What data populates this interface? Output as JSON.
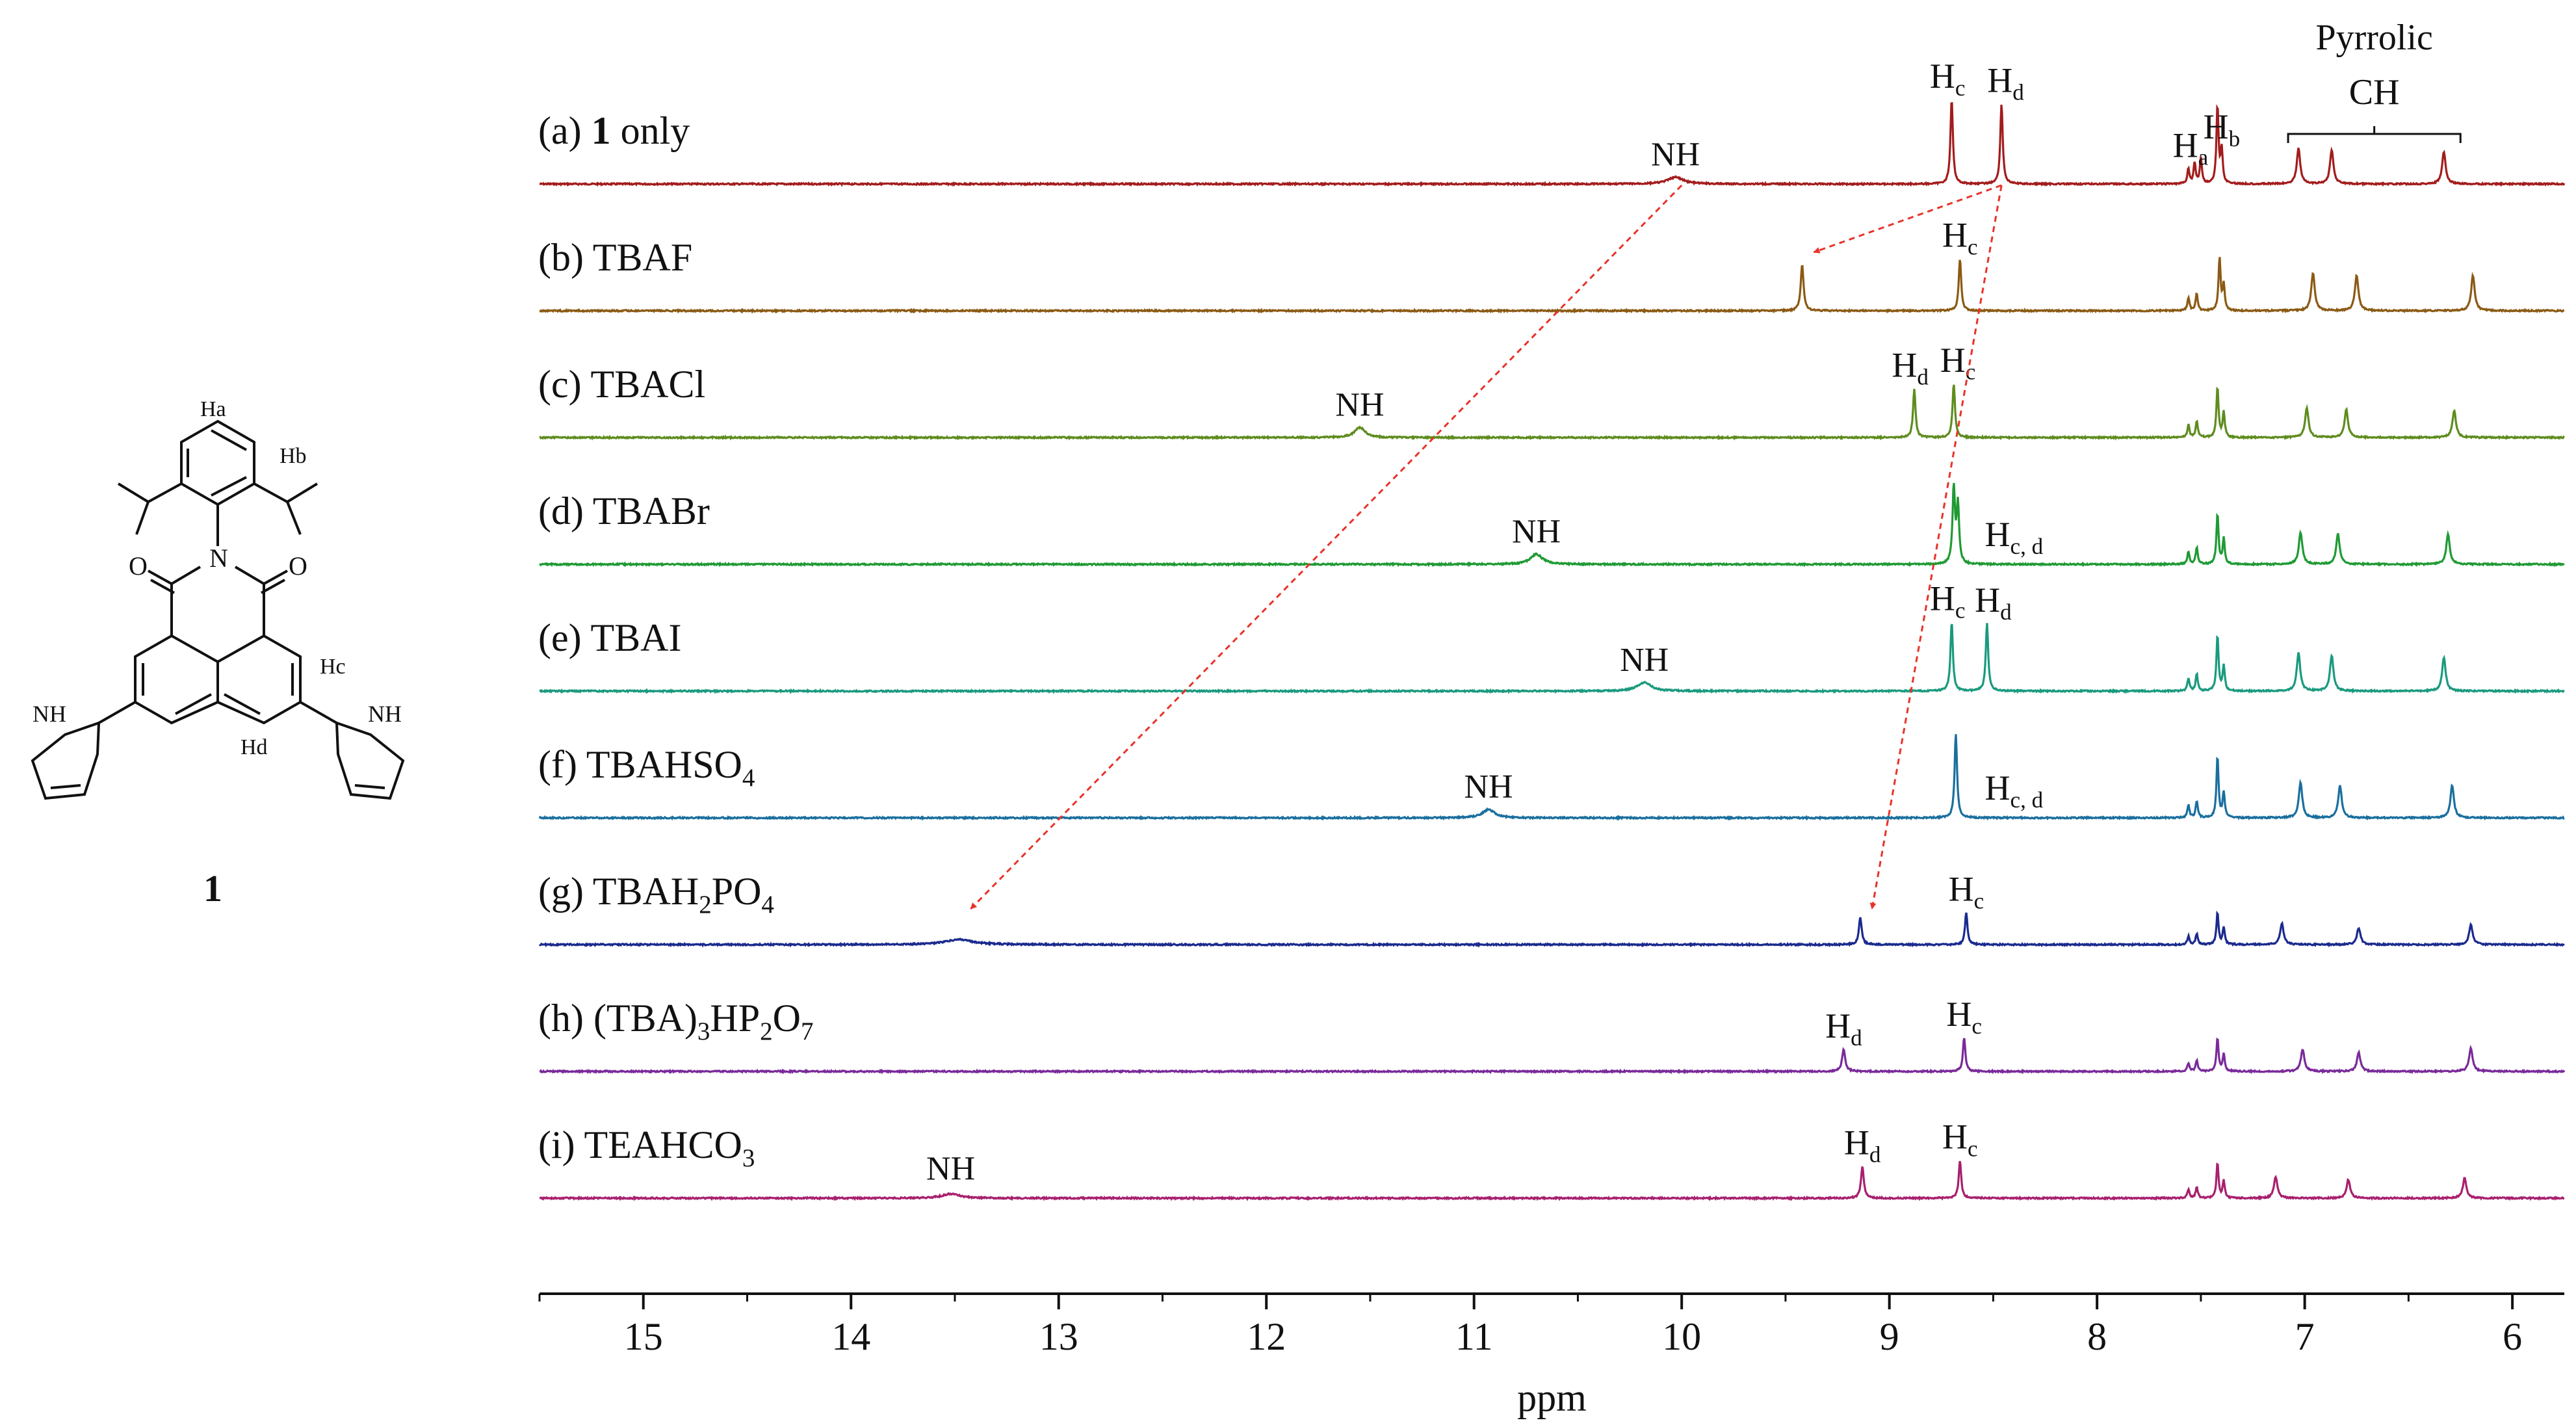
{
  "chart_data": {
    "type": "line",
    "title": "",
    "xlabel": "ppm",
    "ylabel": "",
    "xlim": [
      15.5,
      5.75
    ],
    "x_direction": "reversed",
    "x_ticks": [
      15,
      14,
      13,
      12,
      11,
      10,
      9,
      8,
      7,
      6
    ],
    "grid": false,
    "series": [
      {
        "id": "a",
        "label": "(a) 1 only",
        "label_parts": [
          "(a) ",
          "1",
          " only"
        ],
        "color": "#a31c1c",
        "peaks": [
          {
            "x": 10.03,
            "h": 0.08,
            "w": 0.045
          },
          {
            "x": 8.7,
            "h": 1.0,
            "w": 0.007
          },
          {
            "x": 8.46,
            "h": 0.95,
            "w": 0.007
          },
          {
            "x": 7.56,
            "h": 0.18,
            "w": 0.006
          },
          {
            "x": 7.53,
            "h": 0.25,
            "w": 0.006
          },
          {
            "x": 7.5,
            "h": 0.3,
            "w": 0.006
          },
          {
            "x": 7.42,
            "h": 0.92,
            "w": 0.006
          },
          {
            "x": 7.4,
            "h": 0.4,
            "w": 0.006
          },
          {
            "x": 7.03,
            "h": 0.42,
            "w": 0.01
          },
          {
            "x": 6.87,
            "h": 0.4,
            "w": 0.01
          },
          {
            "x": 6.33,
            "h": 0.38,
            "w": 0.01
          }
        ],
        "annotations": [
          {
            "x": 10.03,
            "text": "NH"
          },
          {
            "x": 8.72,
            "text": "Hc"
          },
          {
            "x": 8.44,
            "text": "Hd"
          },
          {
            "x": 7.55,
            "text": "Ha"
          },
          {
            "x": 7.4,
            "text": "Hb"
          }
        ]
      },
      {
        "id": "b",
        "label": "(b) TBAF",
        "color": "#8b5a14",
        "peaks": [
          {
            "x": 9.42,
            "h": 0.55,
            "w": 0.008
          },
          {
            "x": 8.66,
            "h": 0.62,
            "w": 0.007
          },
          {
            "x": 7.56,
            "h": 0.15,
            "w": 0.006
          },
          {
            "x": 7.52,
            "h": 0.2,
            "w": 0.006
          },
          {
            "x": 7.41,
            "h": 0.62,
            "w": 0.006
          },
          {
            "x": 7.39,
            "h": 0.3,
            "w": 0.006
          },
          {
            "x": 6.96,
            "h": 0.45,
            "w": 0.01
          },
          {
            "x": 6.75,
            "h": 0.42,
            "w": 0.01
          },
          {
            "x": 6.19,
            "h": 0.42,
            "w": 0.01
          }
        ],
        "annotations": [
          {
            "x": 8.66,
            "text": "Hc"
          }
        ]
      },
      {
        "id": "c",
        "label": "(c) TBACl",
        "color": "#5e8c1e",
        "peaks": [
          {
            "x": 11.55,
            "h": 0.12,
            "w": 0.03
          },
          {
            "x": 8.88,
            "h": 0.58,
            "w": 0.007
          },
          {
            "x": 8.69,
            "h": 0.64,
            "w": 0.007
          },
          {
            "x": 7.56,
            "h": 0.15,
            "w": 0.006
          },
          {
            "x": 7.52,
            "h": 0.2,
            "w": 0.006
          },
          {
            "x": 7.42,
            "h": 0.6,
            "w": 0.006
          },
          {
            "x": 7.39,
            "h": 0.3,
            "w": 0.006
          },
          {
            "x": 6.99,
            "h": 0.35,
            "w": 0.01
          },
          {
            "x": 6.8,
            "h": 0.33,
            "w": 0.01
          },
          {
            "x": 6.28,
            "h": 0.32,
            "w": 0.01
          }
        ],
        "annotations": [
          {
            "x": 11.55,
            "text": "NH"
          },
          {
            "x": 8.9,
            "text": "Hd"
          },
          {
            "x": 8.67,
            "text": "Hc"
          }
        ]
      },
      {
        "id": "d",
        "label": "(d) TBABr",
        "color": "#1f9a34",
        "peaks": [
          {
            "x": 10.7,
            "h": 0.12,
            "w": 0.035
          },
          {
            "x": 8.69,
            "h": 0.9,
            "w": 0.007
          },
          {
            "x": 8.67,
            "h": 0.7,
            "w": 0.007
          },
          {
            "x": 7.56,
            "h": 0.15,
            "w": 0.006
          },
          {
            "x": 7.52,
            "h": 0.2,
            "w": 0.006
          },
          {
            "x": 7.42,
            "h": 0.6,
            "w": 0.006
          },
          {
            "x": 7.39,
            "h": 0.3,
            "w": 0.006
          },
          {
            "x": 7.02,
            "h": 0.38,
            "w": 0.01
          },
          {
            "x": 6.84,
            "h": 0.36,
            "w": 0.01
          },
          {
            "x": 6.31,
            "h": 0.36,
            "w": 0.01
          }
        ],
        "annotations": [
          {
            "x": 10.7,
            "text": "NH"
          },
          {
            "x": 8.4,
            "text": "Hc, d"
          }
        ]
      },
      {
        "id": "e",
        "label": "(e) TBAI",
        "color": "#1a9a7e",
        "peaks": [
          {
            "x": 10.18,
            "h": 0.1,
            "w": 0.04
          },
          {
            "x": 8.7,
            "h": 0.82,
            "w": 0.007
          },
          {
            "x": 8.53,
            "h": 0.8,
            "w": 0.007
          },
          {
            "x": 7.56,
            "h": 0.15,
            "w": 0.006
          },
          {
            "x": 7.52,
            "h": 0.2,
            "w": 0.006
          },
          {
            "x": 7.42,
            "h": 0.66,
            "w": 0.006
          },
          {
            "x": 7.39,
            "h": 0.3,
            "w": 0.006
          },
          {
            "x": 7.03,
            "h": 0.45,
            "w": 0.01
          },
          {
            "x": 6.87,
            "h": 0.42,
            "w": 0.01
          },
          {
            "x": 6.33,
            "h": 0.4,
            "w": 0.01
          }
        ],
        "annotations": [
          {
            "x": 10.18,
            "text": "NH"
          },
          {
            "x": 8.72,
            "text": "Hc"
          },
          {
            "x": 8.5,
            "text": "Hd"
          }
        ]
      },
      {
        "id": "f",
        "label": "(f) TBAHSO4",
        "label_parts": [
          "(f) TBAHSO",
          "4",
          ""
        ],
        "color": "#1a6f9e",
        "peaks": [
          {
            "x": 10.93,
            "h": 0.1,
            "w": 0.035
          },
          {
            "x": 8.68,
            "h": 1.0,
            "w": 0.007
          },
          {
            "x": 7.56,
            "h": 0.15,
            "w": 0.006
          },
          {
            "x": 7.52,
            "h": 0.2,
            "w": 0.006
          },
          {
            "x": 7.42,
            "h": 0.72,
            "w": 0.006
          },
          {
            "x": 7.39,
            "h": 0.3,
            "w": 0.006
          },
          {
            "x": 7.02,
            "h": 0.42,
            "w": 0.01
          },
          {
            "x": 6.83,
            "h": 0.38,
            "w": 0.01
          },
          {
            "x": 6.29,
            "h": 0.38,
            "w": 0.01
          }
        ],
        "annotations": [
          {
            "x": 10.93,
            "text": "NH"
          },
          {
            "x": 8.4,
            "text": "Hc, d"
          }
        ]
      },
      {
        "id": "g",
        "label": "(g) TBAH2PO4",
        "label_parts": [
          "(g) TBAH",
          "2",
          "PO",
          "4"
        ],
        "color": "#1a2a8e",
        "peaks": [
          {
            "x": 13.48,
            "h": 0.06,
            "w": 0.08
          },
          {
            "x": 9.14,
            "h": 0.32,
            "w": 0.008
          },
          {
            "x": 8.63,
            "h": 0.38,
            "w": 0.007
          },
          {
            "x": 7.56,
            "h": 0.1,
            "w": 0.006
          },
          {
            "x": 7.52,
            "h": 0.13,
            "w": 0.006
          },
          {
            "x": 7.42,
            "h": 0.38,
            "w": 0.006
          },
          {
            "x": 7.39,
            "h": 0.2,
            "w": 0.006
          },
          {
            "x": 7.11,
            "h": 0.25,
            "w": 0.01
          },
          {
            "x": 6.74,
            "h": 0.2,
            "w": 0.01
          },
          {
            "x": 6.2,
            "h": 0.24,
            "w": 0.01
          }
        ],
        "annotations": [
          {
            "x": 8.63,
            "text": "Hc"
          }
        ]
      },
      {
        "id": "h",
        "label": "(h) (TBA)3HP2O7",
        "label_parts": [
          "(h) (TBA)",
          "3",
          "HP",
          "2",
          "O",
          "7"
        ],
        "color": "#7a2a9a",
        "peaks": [
          {
            "x": 9.22,
            "h": 0.26,
            "w": 0.009
          },
          {
            "x": 8.64,
            "h": 0.4,
            "w": 0.007
          },
          {
            "x": 7.56,
            "h": 0.1,
            "w": 0.006
          },
          {
            "x": 7.52,
            "h": 0.13,
            "w": 0.006
          },
          {
            "x": 7.42,
            "h": 0.4,
            "w": 0.006
          },
          {
            "x": 7.39,
            "h": 0.2,
            "w": 0.006
          },
          {
            "x": 7.01,
            "h": 0.26,
            "w": 0.01
          },
          {
            "x": 6.74,
            "h": 0.22,
            "w": 0.01
          },
          {
            "x": 6.2,
            "h": 0.28,
            "w": 0.01
          }
        ],
        "annotations": [
          {
            "x": 9.22,
            "text": "Hd"
          },
          {
            "x": 8.64,
            "text": "Hc"
          }
        ]
      },
      {
        "id": "i",
        "label": "(i) TEAHCO3",
        "label_parts": [
          "(i) TEAHCO",
          "3",
          ""
        ],
        "color": "#a8206e",
        "peaks": [
          {
            "x": 13.52,
            "h": 0.05,
            "w": 0.05
          },
          {
            "x": 9.13,
            "h": 0.38,
            "w": 0.008
          },
          {
            "x": 8.66,
            "h": 0.45,
            "w": 0.007
          },
          {
            "x": 7.56,
            "h": 0.1,
            "w": 0.006
          },
          {
            "x": 7.52,
            "h": 0.13,
            "w": 0.006
          },
          {
            "x": 7.42,
            "h": 0.42,
            "w": 0.006
          },
          {
            "x": 7.39,
            "h": 0.2,
            "w": 0.006
          },
          {
            "x": 7.14,
            "h": 0.25,
            "w": 0.01
          },
          {
            "x": 6.79,
            "h": 0.22,
            "w": 0.01
          },
          {
            "x": 6.23,
            "h": 0.24,
            "w": 0.01
          }
        ],
        "annotations": [
          {
            "x": 13.52,
            "text": "NH"
          },
          {
            "x": 9.13,
            "text": "Hd"
          },
          {
            "x": 8.66,
            "text": "Hc"
          }
        ]
      }
    ],
    "bracket": {
      "x_from": 7.08,
      "x_to": 6.25,
      "line1": "Pyrrolic",
      "line2": "CH"
    },
    "arrows": [
      {
        "from_series": "a",
        "from_x": 10.0,
        "to_series": "g",
        "to_x": 13.48
      },
      {
        "from_series": "a",
        "from_x": 8.46,
        "to_series": "b",
        "to_x": 9.42
      },
      {
        "from_series": "a",
        "from_x": 8.46,
        "to_series": "g",
        "to_x": 9.14
      }
    ],
    "arrow_color": "#e8332a"
  },
  "structure": {
    "compound_label": "1",
    "labels": {
      "Ha": "Ha",
      "Hb": "Hb",
      "Hc": "Hc",
      "Hd": "Hd",
      "N": "N",
      "O": "O",
      "NH": "NH"
    }
  }
}
